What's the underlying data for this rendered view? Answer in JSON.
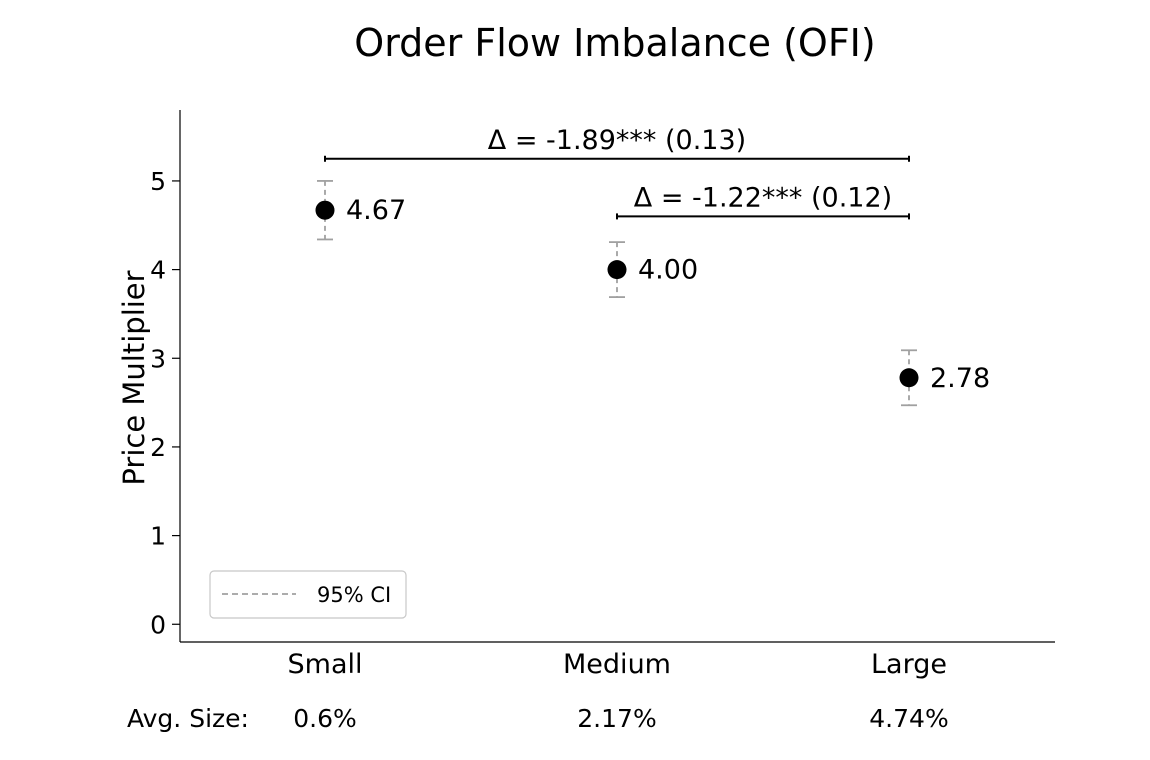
{
  "chart_data": {
    "type": "scatter",
    "title": "Order Flow Imbalance (OFI)",
    "ylabel": "Price Multiplier",
    "xlabel": "",
    "ylim": [
      -0.2,
      5.8
    ],
    "yticks": [
      0,
      1,
      2,
      3,
      4,
      5
    ],
    "grid": false,
    "categories": [
      "Small",
      "Medium",
      "Large"
    ],
    "points": [
      {
        "category": "Small",
        "value": 4.67,
        "ci_low": 4.34,
        "ci_high": 5.0,
        "label": "4.67"
      },
      {
        "category": "Medium",
        "value": 4.0,
        "ci_low": 3.69,
        "ci_high": 4.31,
        "label": "4.00"
      },
      {
        "category": "Large",
        "value": 2.78,
        "ci_low": 2.47,
        "ci_high": 3.09,
        "label": "2.78"
      }
    ],
    "annotations": [
      {
        "text": "Δ = -1.89*** (0.13)",
        "from": "Small",
        "to": "Large",
        "y": 5.25
      },
      {
        "text": "Δ = -1.22*** (0.12)",
        "from": "Medium",
        "to": "Large",
        "y": 4.6
      }
    ],
    "legend": {
      "position": "lower-left",
      "entries": [
        {
          "label": "95% CI",
          "style": "dashed",
          "color": "#a0a0a0"
        }
      ]
    },
    "avg_size": {
      "label": "Avg. Size:",
      "values": [
        "0.6%",
        "2.17%",
        "4.74%"
      ]
    },
    "colors": {
      "point": "#000000",
      "ci": "#a0a0a0",
      "axis": "#000000"
    }
  }
}
